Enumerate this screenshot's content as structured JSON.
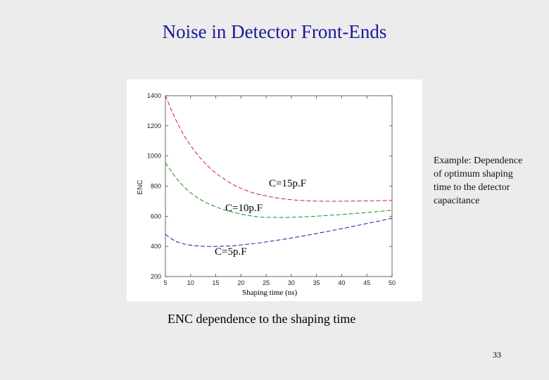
{
  "slide": {
    "title": "Noise in Detector Front-Ends",
    "side_note": "Example: Dependence of optimum shaping time to the detector capacitance",
    "caption": "ENC dependence to the shaping time",
    "page_number": "33"
  },
  "chart_data": {
    "type": "line",
    "title": "",
    "xlabel": "Shaping time (ns)",
    "ylabel": "ENC",
    "xlim": [
      5,
      50
    ],
    "ylim": [
      200,
      1400
    ],
    "xticks": [
      5,
      10,
      15,
      20,
      25,
      30,
      35,
      40,
      45,
      50
    ],
    "yticks": [
      200,
      400,
      600,
      800,
      1000,
      1200,
      1400
    ],
    "ytick_labels": [
      "200",
      "400",
      "600",
      "800",
      "1000",
      "1200",
      "1400"
    ],
    "grid": false,
    "series": [
      {
        "name": "C=15p.F",
        "color": "#d42020",
        "x": [
          5,
          7,
          9,
          11,
          13,
          15,
          17,
          19,
          21,
          23,
          25,
          27,
          30,
          33,
          36,
          40,
          45,
          50
        ],
        "y": [
          1400,
          1245,
          1120,
          1025,
          948,
          887,
          840,
          800,
          772,
          750,
          735,
          722,
          710,
          703,
          700,
          700,
          702,
          705
        ]
      },
      {
        "name": "C=10p.F",
        "color": "#1a8a1a",
        "x": [
          5,
          7,
          9,
          11,
          13,
          15,
          17,
          19,
          21,
          23,
          25,
          27,
          30,
          33,
          36,
          40,
          45,
          50
        ],
        "y": [
          955,
          860,
          786,
          731,
          692,
          663,
          640,
          622,
          608,
          598,
          593,
          592,
          593,
          597,
          603,
          612,
          625,
          640
        ]
      },
      {
        "name": "C=5p.F",
        "color": "#1a1aa8",
        "x": [
          5,
          7,
          9,
          11,
          13,
          15,
          17,
          19,
          21,
          23,
          25,
          27,
          30,
          33,
          36,
          40,
          45,
          50
        ],
        "y": [
          480,
          435,
          414,
          404,
          400,
          400,
          402,
          406,
          413,
          421,
          430,
          440,
          456,
          473,
          492,
          518,
          552,
          587
        ]
      }
    ]
  }
}
